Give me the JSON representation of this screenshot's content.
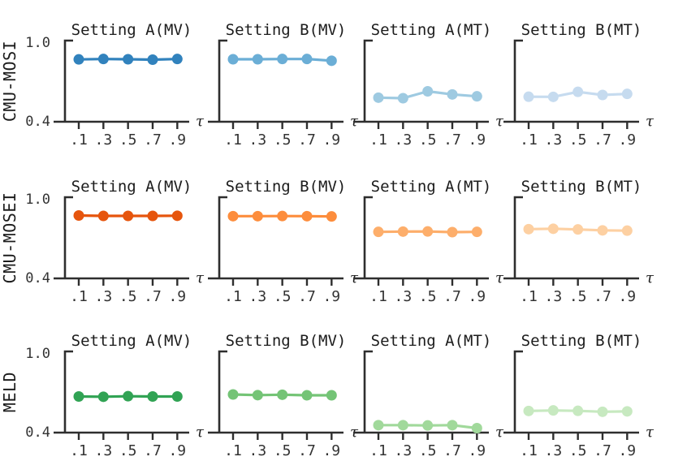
{
  "figure": {
    "background": "#ffffff",
    "axis_color": "#2e2e2e",
    "text_color": "#1c1c1c",
    "tick_label_color": "#333333"
  },
  "chart_data": {
    "type": "line",
    "x": [
      0.1,
      0.3,
      0.5,
      0.7,
      0.9
    ],
    "xtick_labels": [
      ".1",
      ".3",
      ".5",
      ".7",
      ".9"
    ],
    "x_axis_symbol": "τ",
    "ylim": [
      0.4,
      1.0
    ],
    "ytick_labels": [
      "1.0",
      "0.4"
    ],
    "grid": false,
    "legend": "none",
    "rows": [
      {
        "label": "CMU-MOSI",
        "series": [
          {
            "name": "Setting A(MV)",
            "color": "#3182bd",
            "values": [
              0.861,
              0.864,
              0.862,
              0.859,
              0.864
            ]
          },
          {
            "name": "Setting B(MV)",
            "color": "#6baed6",
            "values": [
              0.862,
              0.862,
              0.864,
              0.864,
              0.851
            ]
          },
          {
            "name": "Setting A(MT)",
            "color": "#9ecae1",
            "values": [
              0.578,
              0.574,
              0.625,
              0.602,
              0.588
            ]
          },
          {
            "name": "Setting B(MT)",
            "color": "#c6dbef",
            "values": [
              0.585,
              0.584,
              0.621,
              0.598,
              0.606
            ]
          }
        ]
      },
      {
        "label": "CMU-MOSEI",
        "series": [
          {
            "name": "Setting A(MV)",
            "color": "#e6550d",
            "values": [
              0.865,
              0.862,
              0.862,
              0.862,
              0.863
            ]
          },
          {
            "name": "Setting B(MV)",
            "color": "#fd8d3c",
            "values": [
              0.86,
              0.86,
              0.861,
              0.86,
              0.858
            ]
          },
          {
            "name": "Setting A(MT)",
            "color": "#fdae6b",
            "values": [
              0.744,
              0.746,
              0.747,
              0.742,
              0.744
            ]
          },
          {
            "name": "Setting B(MT)",
            "color": "#fdd0a2",
            "values": [
              0.764,
              0.767,
              0.762,
              0.755,
              0.753
            ]
          }
        ]
      },
      {
        "label": "MELD",
        "series": [
          {
            "name": "Setting A(MV)",
            "color": "#31a354",
            "values": [
              0.667,
              0.665,
              0.669,
              0.667,
              0.667
            ]
          },
          {
            "name": "Setting B(MV)",
            "color": "#74c476",
            "values": [
              0.682,
              0.677,
              0.68,
              0.676,
              0.676
            ]
          },
          {
            "name": "Setting A(MT)",
            "color": "#a1d99b",
            "values": [
              0.455,
              0.455,
              0.453,
              0.455,
              0.433
            ]
          },
          {
            "name": "Setting B(MT)",
            "color": "#c7e9c0",
            "values": [
              0.56,
              0.564,
              0.561,
              0.554,
              0.557
            ]
          }
        ]
      }
    ]
  }
}
